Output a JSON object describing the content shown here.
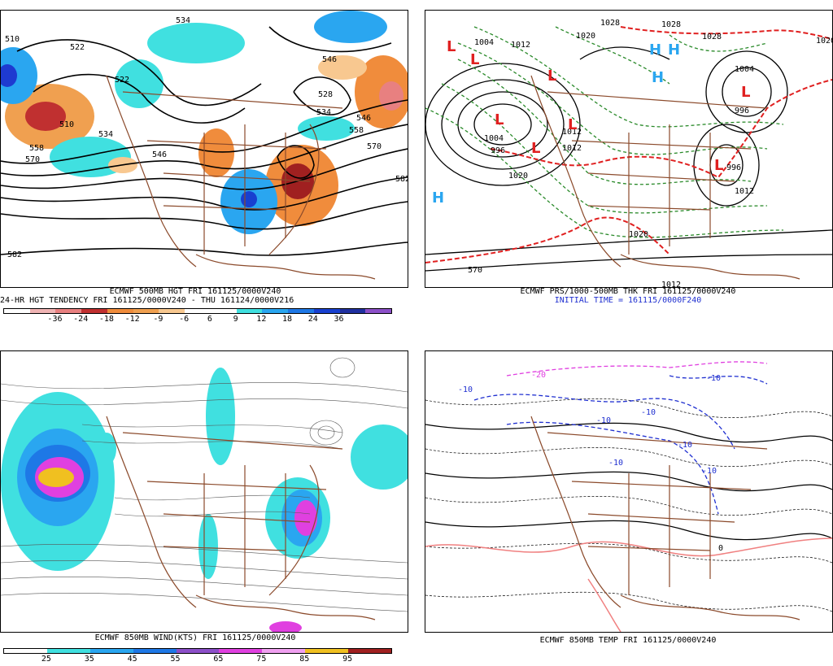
{
  "panels": {
    "top_left": {
      "title": "ECMWF 500MB HGT FRI 161125/0000V240",
      "subtitle": "24-HR HGT TENDENCY FRI 161125/0000V240 - THU 161124/0000V216",
      "colorbar": {
        "colors": [
          "#ffffff",
          "#f0b4b4",
          "#e88080",
          "#c03030",
          "#f08c3c",
          "#f0a050",
          "#f8c890",
          "#ffffff",
          "#ffffff",
          "#40e0e0",
          "#2aa6f0",
          "#1e78e6",
          "#1840d0",
          "#2030a0",
          "#8c50c8"
        ],
        "labels": [
          "-36",
          "-24",
          "-18",
          "-12",
          "-9",
          "-6",
          "6",
          "9",
          "12",
          "18",
          "24",
          "36"
        ]
      },
      "contour_labels": [
        "510",
        "534",
        "522",
        "546",
        "510",
        "522",
        "534",
        "546",
        "570",
        "558",
        "528",
        "534",
        "546",
        "558",
        "570",
        "582",
        "582"
      ]
    },
    "top_right": {
      "title": "ECMWF PRS/1000-500MB THK FRI 161125/0000V240",
      "subtitle": "INITIAL TIME = 161115/0000F240",
      "pressure_labels": [
        "1004",
        "1012",
        "1028",
        "1020",
        "1012",
        "1004",
        "996",
        "1028",
        "1020",
        "1028",
        "1020",
        "1012",
        "1004",
        "996",
        "1012",
        "996",
        "1020",
        "1012",
        "570"
      ],
      "highs": [
        "H",
        "H",
        "H",
        "H"
      ],
      "lows": [
        "L",
        "L",
        "L",
        "L",
        "L",
        "L",
        "L",
        "L"
      ]
    },
    "bottom_left": {
      "title": "ECMWF 850MB WIND(KTS) FRI 161125/0000V240",
      "colorbar": {
        "colors": [
          "#ffffff",
          "#40e0e0",
          "#2aa6f0",
          "#1e78e6",
          "#8c50c8",
          "#e040e0",
          "#f0a0f0",
          "#f0c020",
          "#a02020"
        ],
        "labels": [
          "25",
          "35",
          "45",
          "55",
          "65",
          "75",
          "85",
          "95"
        ]
      }
    },
    "bottom_right": {
      "title": "ECMWF 850MB TEMP FRI 161125/0000V240",
      "temp_labels": [
        "-20",
        "-10",
        "-10",
        "-10",
        "-10",
        "-10",
        "-10",
        "-10",
        "0"
      ]
    }
  }
}
